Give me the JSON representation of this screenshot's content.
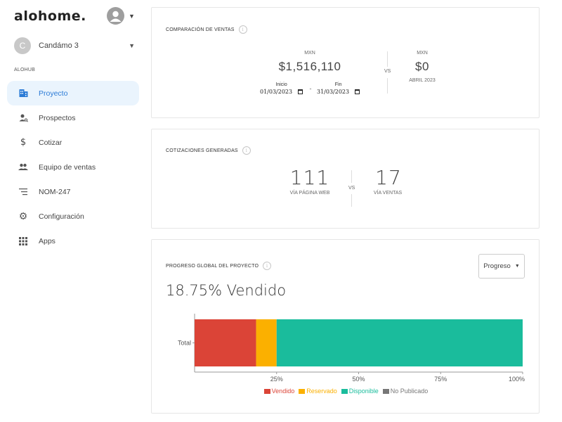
{
  "brand": {
    "logo": "alohome."
  },
  "sidebar": {
    "project": {
      "initial": "C",
      "name": "Candámo 3"
    },
    "section_label": "ALOHUB",
    "items": [
      {
        "label": "Proyecto",
        "icon": "building-icon",
        "active": true
      },
      {
        "label": "Prospectos",
        "icon": "person-search-icon"
      },
      {
        "label": "Cotizar",
        "icon": "dollar-icon"
      },
      {
        "label": "Equipo de ventas",
        "icon": "group-icon"
      },
      {
        "label": "NOM-247",
        "icon": "list-icon"
      },
      {
        "label": "Configuración",
        "icon": "gear-icon"
      },
      {
        "label": "Apps",
        "icon": "apps-grid-icon"
      }
    ]
  },
  "ventas": {
    "title": "COMPARACIÓN DE VENTAS",
    "left": {
      "currency": "MXN",
      "amount": "$1,516,110"
    },
    "vs": "VS",
    "right": {
      "currency": "MXN",
      "amount": "$0",
      "period": "ABRIL 2023"
    },
    "start": {
      "label": "Inicio",
      "value": "01/03/2023"
    },
    "separator": "-",
    "end": {
      "label": "Fin",
      "value": "31/03/2023"
    }
  },
  "cotizaciones": {
    "title": "COTIZACIONES GENERADAS",
    "left": {
      "value": "111",
      "label": "VÍA PÁGINA WEB"
    },
    "vs": "VS",
    "right": {
      "value": "17",
      "label": "VÍA VENTAS"
    }
  },
  "progreso": {
    "title": "PROGRESO GLOBAL DEL PROYECTO",
    "select_value": "Progreso",
    "headline": "18.75% Vendido"
  },
  "chart_data": {
    "type": "bar",
    "orientation": "horizontal",
    "stacked": true,
    "categories": [
      "Total"
    ],
    "series": [
      {
        "name": "Vendido",
        "values": [
          18.75
        ],
        "color": "#db4437"
      },
      {
        "name": "Reservado",
        "values": [
          6.25
        ],
        "color": "#fbb000"
      },
      {
        "name": "Disponible",
        "values": [
          75
        ],
        "color": "#1abc9c"
      },
      {
        "name": "No Publicado",
        "values": [
          0
        ],
        "color": "#777777"
      }
    ],
    "x_ticks": [
      "25%",
      "50%",
      "75%",
      "100%"
    ],
    "xlim": [
      0,
      100
    ],
    "legend_position": "bottom"
  },
  "colors": {
    "accent": "#2b7bd6",
    "active_bg": "#eaf4fd"
  }
}
